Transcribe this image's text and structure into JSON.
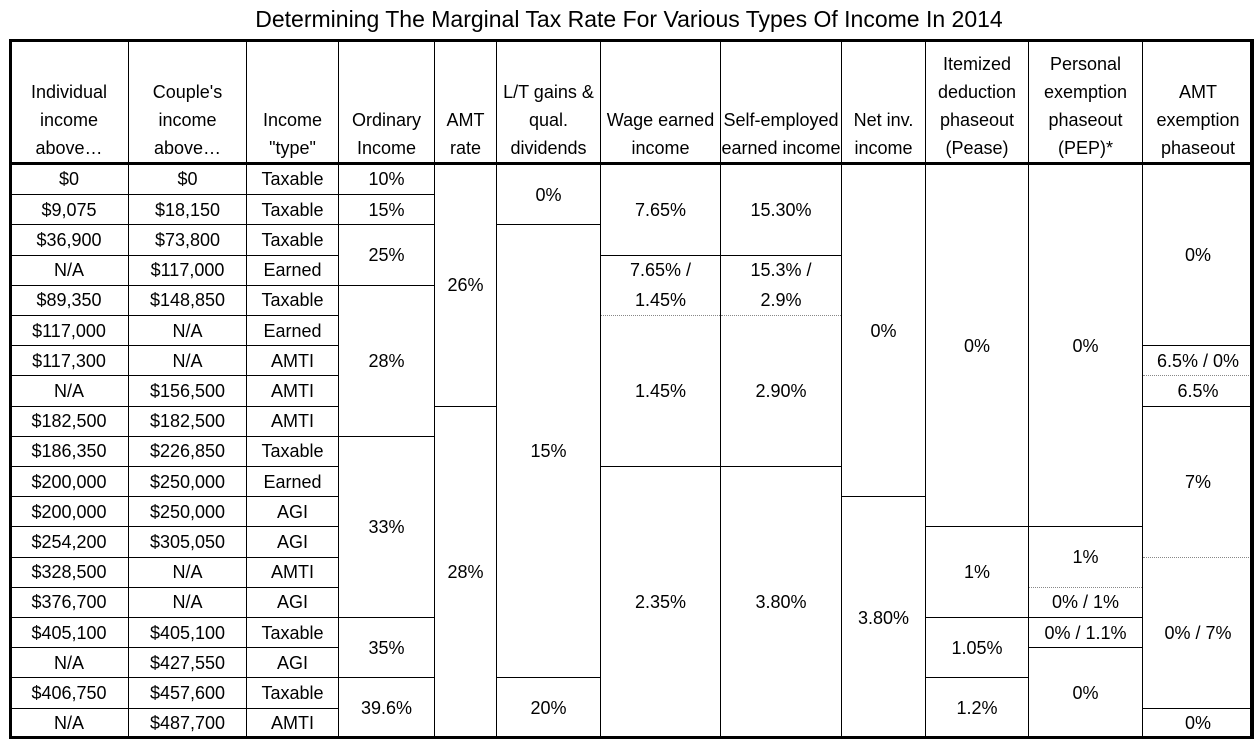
{
  "title": "Determining The Marginal Tax Rate For Various Types Of Income In 2014",
  "headers": {
    "individual": "Individual income above…",
    "couple": "Couple's income above…",
    "type": "Income \"type\"",
    "ordinary": "Ordinary Income",
    "amt_rate": "AMT rate",
    "ltcg": "L/T gains & qual. dividends",
    "wage": "Wage earned income",
    "self": "Self-employed earned income",
    "niit": "Net inv. income",
    "pease": "Itemized deduction phaseout (Pease)",
    "pep": "Personal exemption phaseout (PEP)*",
    "amt_exemption": "AMT exemption phaseout"
  },
  "rows": [
    {
      "individual": "$0",
      "couple": "$0",
      "type": "Taxable"
    },
    {
      "individual": "$9,075",
      "couple": "$18,150",
      "type": "Taxable"
    },
    {
      "individual": "$36,900",
      "couple": "$73,800",
      "type": "Taxable"
    },
    {
      "individual": "N/A",
      "couple": "$117,000",
      "type": "Earned"
    },
    {
      "individual": "$89,350",
      "couple": "$148,850",
      "type": "Taxable"
    },
    {
      "individual": "$117,000",
      "couple": "N/A",
      "type": "Earned"
    },
    {
      "individual": "$117,300",
      "couple": "N/A",
      "type": "AMTI"
    },
    {
      "individual": "N/A",
      "couple": "$156,500",
      "type": "AMTI"
    },
    {
      "individual": "$182,500",
      "couple": "$182,500",
      "type": "AMTI"
    },
    {
      "individual": "$186,350",
      "couple": "$226,850",
      "type": "Taxable"
    },
    {
      "individual": "$200,000",
      "couple": "$250,000",
      "type": "Earned"
    },
    {
      "individual": "$200,000",
      "couple": "$250,000",
      "type": "AGI"
    },
    {
      "individual": "$254,200",
      "couple": "$305,050",
      "type": "AGI"
    },
    {
      "individual": "$328,500",
      "couple": "N/A",
      "type": "AMTI"
    },
    {
      "individual": "$376,700",
      "couple": "N/A",
      "type": "AGI"
    },
    {
      "individual": "$405,100",
      "couple": "$405,100",
      "type": "Taxable"
    },
    {
      "individual": "N/A",
      "couple": "$427,550",
      "type": "AGI"
    },
    {
      "individual": "$406,750",
      "couple": "$457,600",
      "type": "Taxable"
    },
    {
      "individual": "N/A",
      "couple": "$487,700",
      "type": "AMTI"
    }
  ],
  "ordinary": [
    "10%",
    "15%",
    "25%",
    "28%",
    "33%",
    "35%",
    "39.6%"
  ],
  "amt_rate": [
    "26%",
    "28%"
  ],
  "ltcg": [
    "0%",
    "15%",
    "20%"
  ],
  "wage": [
    "7.65%",
    "7.65% /",
    "1.45%",
    "1.45%",
    "2.35%"
  ],
  "self": [
    "15.30%",
    "15.3% /",
    "2.9%",
    "2.90%",
    "3.80%"
  ],
  "niit": [
    "0%",
    "3.80%"
  ],
  "pease": [
    "0%",
    "1%",
    "1.05%",
    "1.2%"
  ],
  "pep": [
    "0%",
    "1%",
    "0% / 1%",
    "0% / 1.1%",
    "0%"
  ],
  "amt_exemption": [
    "0%",
    "6.5% / 0%",
    "6.5%",
    "7%",
    "0% / 7%",
    "0%"
  ]
}
